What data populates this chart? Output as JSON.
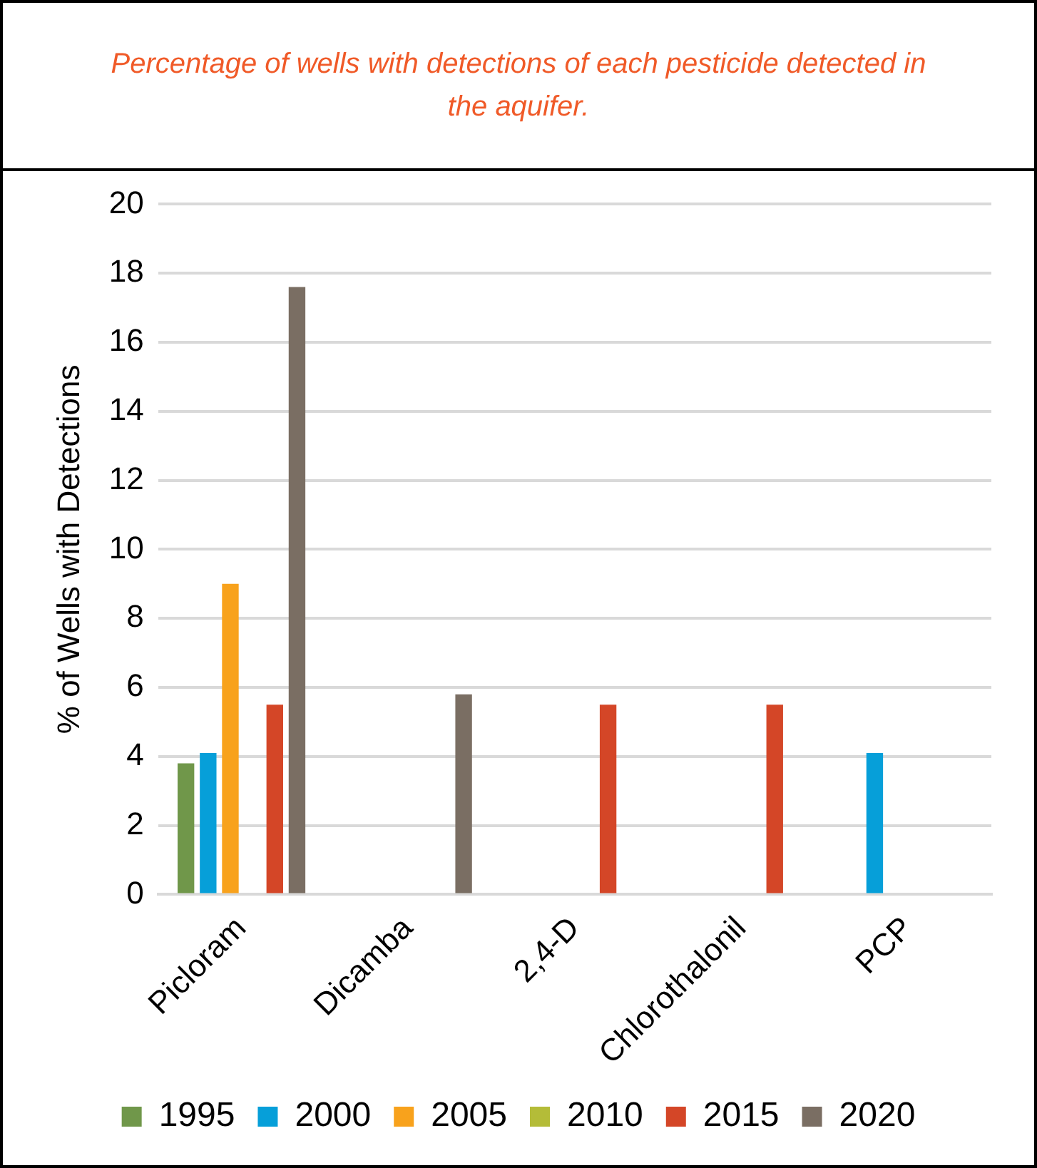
{
  "chart_data": {
    "type": "bar",
    "title": "Percentage of wells with detections of each pesticide detected in the aquifer.",
    "ylabel": "% of Wells with Detections",
    "categories": [
      "Picloram",
      "Dicamba",
      "2,4-D",
      "Chlorothalonil",
      "PCP"
    ],
    "series": [
      {
        "name": "1995",
        "color": "#70974a",
        "values": [
          3.8,
          null,
          null,
          null,
          null
        ]
      },
      {
        "name": "2000",
        "color": "#069fd9",
        "values": [
          4.1,
          null,
          null,
          null,
          4.1
        ]
      },
      {
        "name": "2005",
        "color": "#f8a21c",
        "values": [
          9.0,
          null,
          null,
          null,
          null
        ]
      },
      {
        "name": "2010",
        "color": "#b4bc38",
        "values": [
          null,
          null,
          null,
          null,
          null
        ]
      },
      {
        "name": "2015",
        "color": "#d44627",
        "values": [
          5.5,
          null,
          5.5,
          5.5,
          null
        ]
      },
      {
        "name": "2020",
        "color": "#7a6e63",
        "values": [
          17.6,
          5.8,
          null,
          null,
          null
        ]
      }
    ],
    "ylim": [
      0,
      20
    ],
    "yticks": [
      0,
      2,
      4,
      6,
      8,
      10,
      12,
      14,
      16,
      18,
      20
    ],
    "grid": "y",
    "legend": "bottom"
  }
}
